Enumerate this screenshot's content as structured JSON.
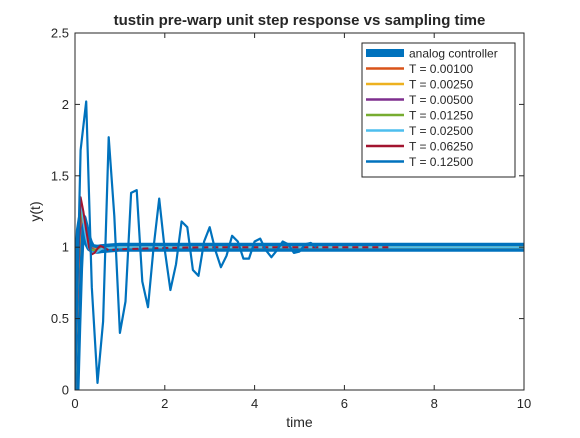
{
  "chart_data": {
    "type": "line",
    "title": "tustin pre-warp unit step response vs sampling time",
    "xlabel": "time",
    "ylabel": "y(t)",
    "xlim": [
      0,
      10
    ],
    "ylim": [
      0,
      2.5
    ],
    "xticks": [
      "0",
      "2",
      "4",
      "6",
      "8",
      "10"
    ],
    "yticks": [
      "0",
      "0.5",
      "1",
      "1.5",
      "2",
      "2.5"
    ],
    "grid": false,
    "legend_position": "top-right",
    "series": [
      {
        "name": "analog controller",
        "color": "#0072BD",
        "x": [
          0,
          0.04,
          0.08,
          0.12,
          0.16,
          0.2,
          0.25,
          0.3,
          0.35,
          0.4,
          0.5,
          0.6,
          0.8,
          1.0,
          1.5,
          2,
          3,
          4,
          5,
          6,
          7,
          8,
          9,
          10
        ],
        "y": [
          0,
          0.45,
          0.85,
          1.12,
          1.2,
          1.15,
          1.08,
          1.03,
          1.0,
          0.99,
          0.985,
          0.99,
          0.995,
          1.0,
          1.0,
          1.0,
          1.0,
          1.0,
          1.0,
          1.0,
          1.0,
          1.0,
          1.0,
          1.0
        ]
      },
      {
        "name": "T = 0.00100",
        "color": "#D95319",
        "x": [
          0,
          0.04,
          0.08,
          0.12,
          0.16,
          0.2,
          0.25,
          0.3,
          0.35,
          0.4,
          0.5,
          0.6,
          0.8,
          1.0,
          10
        ],
        "y": [
          0,
          0.45,
          0.86,
          1.13,
          1.21,
          1.16,
          1.08,
          1.03,
          1.0,
          0.99,
          0.985,
          0.99,
          0.995,
          1.0,
          1.0
        ]
      },
      {
        "name": "T = 0.00250",
        "color": "#EDB120",
        "x": [
          0,
          0.04,
          0.08,
          0.12,
          0.16,
          0.2,
          0.25,
          0.3,
          0.35,
          0.4,
          0.5,
          0.6,
          0.8,
          1.0,
          10
        ],
        "y": [
          0,
          0.46,
          0.87,
          1.14,
          1.22,
          1.17,
          1.09,
          1.03,
          1.0,
          0.99,
          0.985,
          0.99,
          0.995,
          1.0,
          1.0
        ]
      },
      {
        "name": "T = 0.00500",
        "color": "#7E2F8E",
        "x": [
          0,
          0.05,
          0.1,
          0.15,
          0.2,
          0.25,
          0.3,
          0.35,
          0.4,
          0.5,
          0.6,
          0.8,
          1.0,
          10
        ],
        "y": [
          0,
          0.55,
          1.05,
          1.24,
          1.2,
          1.1,
          1.03,
          1.0,
          0.985,
          0.98,
          0.99,
          0.995,
          1.0,
          1.0
        ]
      },
      {
        "name": "T = 0.01250",
        "color": "#77AC30",
        "x": [
          0,
          0.0125,
          0.05,
          0.1,
          0.15,
          0.2,
          0.25,
          0.3,
          0.35,
          0.4,
          0.5,
          0.6,
          0.8,
          1.0,
          10
        ],
        "y": [
          0,
          0.1,
          0.6,
          1.12,
          1.27,
          1.2,
          1.1,
          1.03,
          0.99,
          0.98,
          0.98,
          0.99,
          0.995,
          1.0,
          1.0
        ]
      },
      {
        "name": "T = 0.02500",
        "color": "#4DBEEE",
        "x": [
          0,
          0.025,
          0.05,
          0.075,
          0.1,
          0.125,
          0.15,
          0.2,
          0.25,
          0.3,
          0.35,
          0.4,
          0.5,
          0.6,
          0.8,
          1.0,
          10
        ],
        "y": [
          0,
          0.25,
          0.6,
          0.95,
          1.2,
          1.3,
          1.28,
          1.15,
          1.06,
          1.0,
          0.97,
          0.96,
          0.97,
          0.99,
          0.995,
          1.0,
          1.0
        ]
      },
      {
        "name": "T = 0.06250",
        "color": "#A2142F",
        "dashed_segment_from_x": 0.6,
        "x": [
          0,
          0.0625,
          0.125,
          0.1875,
          0.25,
          0.3125,
          0.375,
          0.4375,
          0.5,
          0.5625,
          0.625,
          0.75,
          1.0,
          1.5,
          2,
          3,
          4,
          5,
          6,
          7
        ],
        "y": [
          0,
          0.8,
          1.35,
          1.25,
          1.12,
          1.0,
          0.95,
          0.96,
          0.99,
          1.01,
          1.0,
          0.98,
          0.985,
          0.99,
          0.995,
          1.0,
          1.0,
          1.0,
          1.0,
          1.0
        ]
      },
      {
        "name": "T = 0.12500",
        "color": "#0072BD",
        "x": [
          0,
          0.125,
          0.25,
          0.375,
          0.5,
          0.625,
          0.75,
          0.875,
          1.0,
          1.125,
          1.25,
          1.375,
          1.5,
          1.625,
          1.75,
          1.875,
          2.0,
          2.125,
          2.25,
          2.375,
          2.5,
          2.625,
          2.75,
          2.875,
          3.0,
          3.125,
          3.25,
          3.375,
          3.5,
          3.625,
          3.75,
          3.875,
          4.0,
          4.125,
          4.25,
          4.375,
          4.5,
          4.625,
          4.75,
          4.875,
          5.0,
          5.125,
          5.25,
          5.375
        ],
        "y": [
          0,
          1.68,
          2.02,
          0.72,
          0.05,
          0.48,
          1.77,
          1.22,
          0.4,
          0.62,
          1.38,
          1.4,
          0.76,
          0.58,
          1.0,
          1.34,
          0.98,
          0.7,
          0.88,
          1.18,
          1.14,
          0.84,
          0.8,
          1.04,
          1.14,
          0.98,
          0.86,
          0.94,
          1.08,
          1.04,
          0.92,
          0.92,
          1.04,
          1.06,
          0.98,
          0.93,
          0.98,
          1.04,
          1.02,
          0.96,
          0.97,
          1.02,
          1.03,
          1.0
        ]
      }
    ]
  }
}
